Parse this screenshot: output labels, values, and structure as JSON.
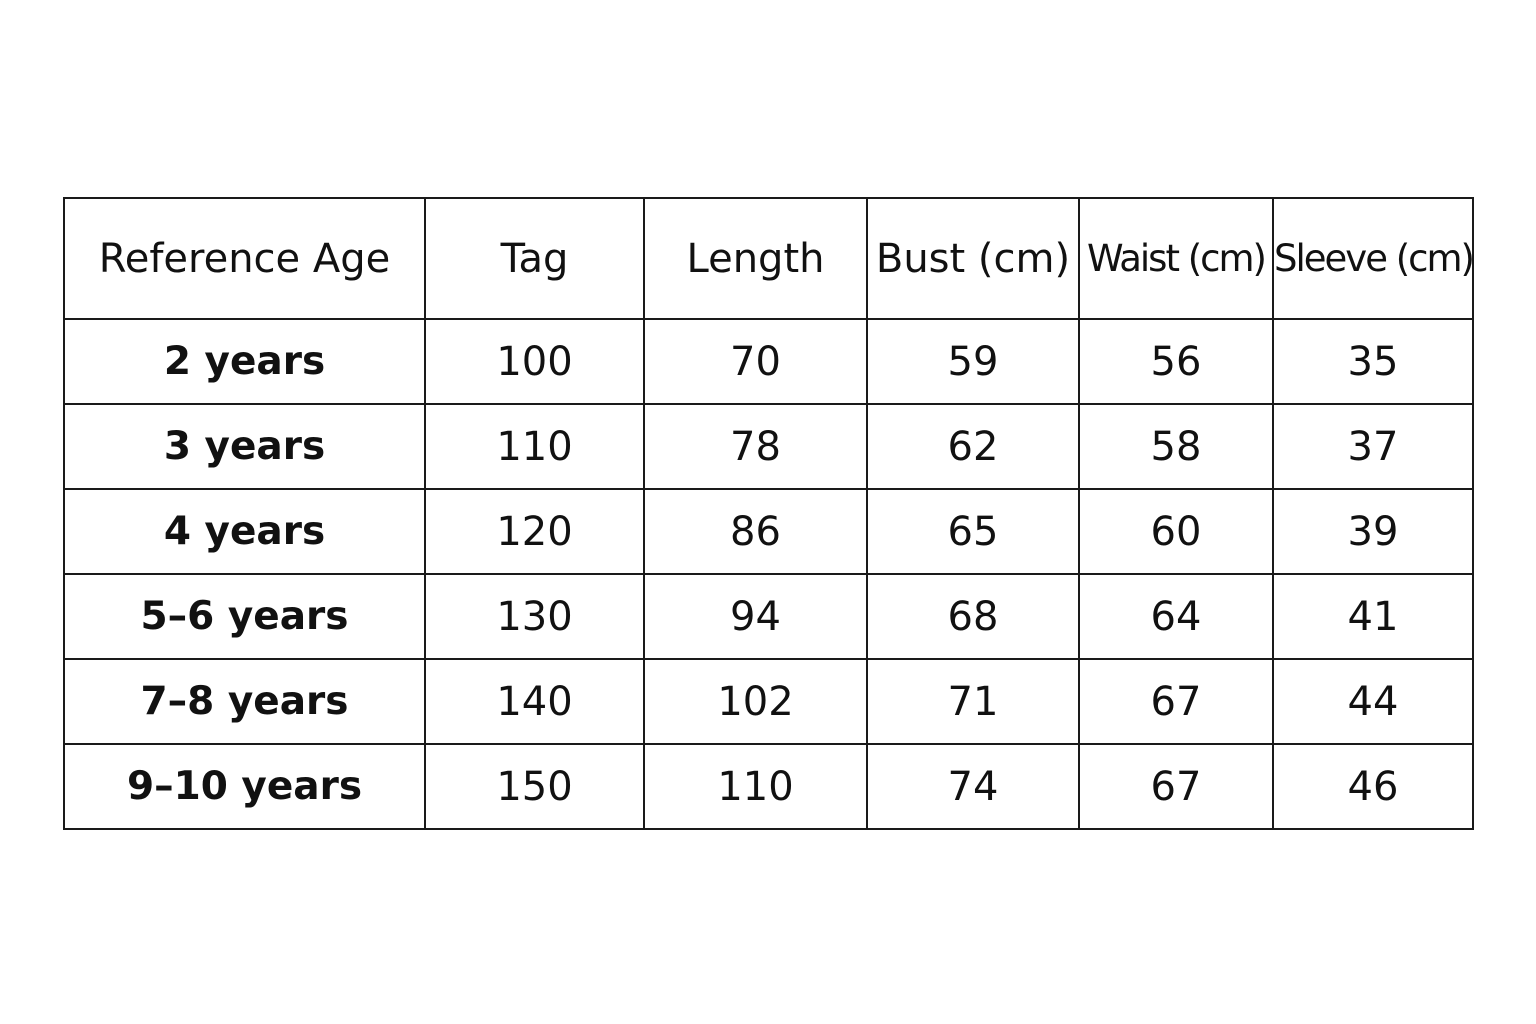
{
  "table": {
    "headers": [
      "Reference Age",
      "Tag",
      "Length",
      "Bust (cm)",
      "Waist (cm)",
      "Sleeve (cm)"
    ],
    "rows": [
      [
        "2 years",
        "100",
        "70",
        "59",
        "56",
        "35"
      ],
      [
        "3 years",
        "110",
        "78",
        "62",
        "58",
        "37"
      ],
      [
        "4 years",
        "120",
        "86",
        "65",
        "60",
        "39"
      ],
      [
        "5–6 years",
        "130",
        "94",
        "68",
        "64",
        "41"
      ],
      [
        "7–8 years",
        "140",
        "102",
        "71",
        "67",
        "44"
      ],
      [
        "9–10 years",
        "150",
        "110",
        "74",
        "67",
        "46"
      ]
    ]
  }
}
